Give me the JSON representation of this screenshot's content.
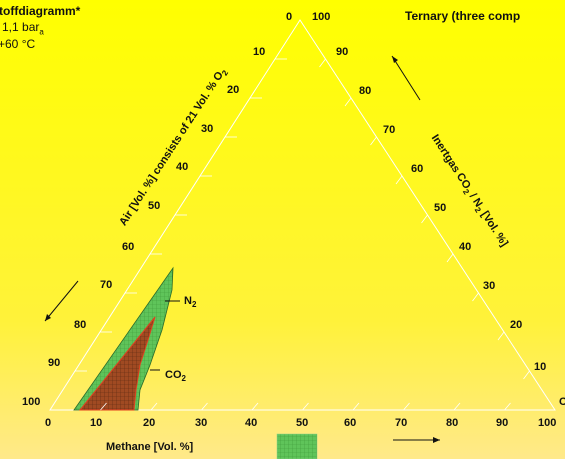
{
  "header": {
    "left_title": "toffdiagramm*",
    "pressure_prefix": "1,1 bar",
    "pressure_sub": "a",
    "temperature": "+60 °C",
    "right_title": "Ternary (three comp"
  },
  "axes": {
    "left_label": "Air [Vol. %] consists of 21 Vol. % O",
    "left_label_sub": "2",
    "right_label_a": "Inertgas CO",
    "right_label_sub": "2",
    "right_label_b": " / N",
    "right_label_sub2": "2",
    "right_label_c": " [Vol. %]",
    "bottom_label": "Methane  [Vol. %]",
    "apex_left": "0",
    "apex_right": "100",
    "left_ticks": [
      "10",
      "20",
      "30",
      "40",
      "50",
      "60",
      "70",
      "80",
      "90",
      "100"
    ],
    "right_ticks": [
      "90",
      "80",
      "70",
      "60",
      "50",
      "40",
      "30",
      "20",
      "10"
    ],
    "bottom_ticks": [
      "0",
      "10",
      "20",
      "30",
      "40",
      "50",
      "60",
      "70",
      "80",
      "90",
      "100"
    ],
    "bottom_right_edge": "C"
  },
  "regions": {
    "n2_label": "N",
    "n2_sub": "2",
    "co2_label": "CO",
    "co2_sub": "2"
  },
  "colors": {
    "background_top": "#ffff00",
    "background_bottom": "#ffe98a",
    "n2_fill": "#66c85a",
    "co2_fill": "#9a4a22"
  }
}
